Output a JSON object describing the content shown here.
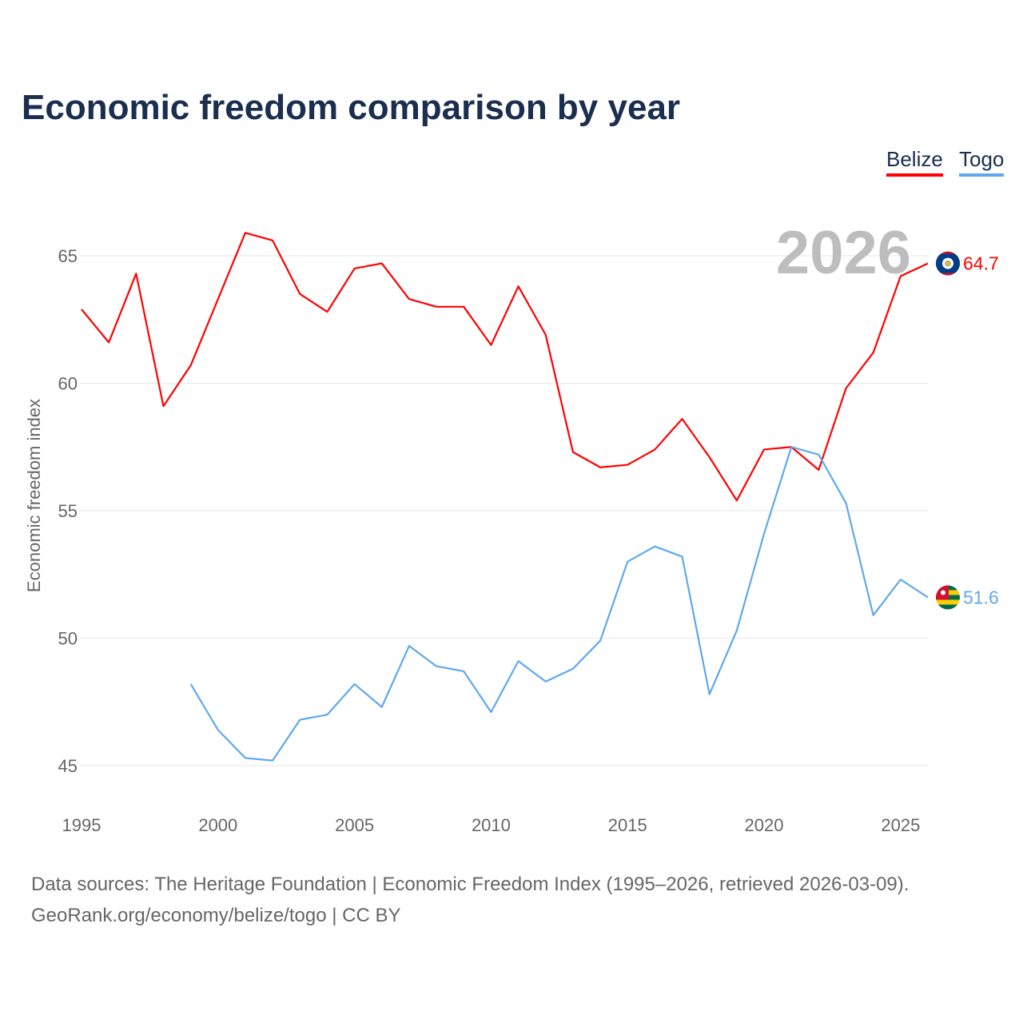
{
  "chart_data": {
    "type": "line",
    "title": "Economic freedom comparison by year",
    "xlabel": "",
    "ylabel": "Economic freedom index",
    "xlim": [
      1995,
      2026
    ],
    "ylim": [
      43.5,
      67
    ],
    "x_ticks": [
      1995,
      2000,
      2005,
      2010,
      2015,
      2020,
      2025
    ],
    "y_ticks": [
      45,
      50,
      55,
      60,
      65
    ],
    "grid": true,
    "legend_position": "top-right",
    "year_watermark": "2026",
    "series": [
      {
        "name": "Belize",
        "color": "#ff0000",
        "end_label": "64.7",
        "x": [
          1995,
          1996,
          1997,
          1998,
          1999,
          2000,
          2001,
          2002,
          2003,
          2004,
          2005,
          2006,
          2007,
          2008,
          2009,
          2010,
          2011,
          2012,
          2013,
          2014,
          2015,
          2016,
          2017,
          2018,
          2019,
          2020,
          2021,
          2022,
          2023,
          2024,
          2025,
          2026
        ],
        "values": [
          62.9,
          61.6,
          64.3,
          59.1,
          60.7,
          63.3,
          65.9,
          65.6,
          63.5,
          62.8,
          64.5,
          64.7,
          63.3,
          63.0,
          63.0,
          61.5,
          63.8,
          61.9,
          57.3,
          56.7,
          56.8,
          57.4,
          58.6,
          57.1,
          55.4,
          57.4,
          57.5,
          56.6,
          59.8,
          61.2,
          64.2,
          64.7
        ]
      },
      {
        "name": "Togo",
        "color": "#5ea8ee",
        "end_label": "51.6",
        "x": [
          1999,
          2000,
          2001,
          2002,
          2003,
          2004,
          2005,
          2006,
          2007,
          2008,
          2009,
          2010,
          2011,
          2012,
          2013,
          2014,
          2015,
          2016,
          2017,
          2018,
          2019,
          2020,
          2021,
          2022,
          2023,
          2024,
          2025,
          2026
        ],
        "values": [
          48.2,
          46.4,
          45.3,
          45.2,
          46.8,
          47.0,
          48.2,
          47.3,
          49.7,
          48.9,
          48.7,
          47.1,
          49.1,
          48.3,
          48.8,
          49.9,
          53.0,
          53.6,
          53.2,
          47.8,
          50.3,
          54.1,
          57.5,
          57.2,
          55.3,
          50.9,
          52.3,
          51.6
        ]
      }
    ]
  },
  "footer": {
    "line1": "Data sources: The Heritage Foundation | Economic Freedom Index (1995–2026, retrieved 2026-03-09).",
    "line2": "GeoRank.org/economy/belize/togo | CC BY"
  }
}
